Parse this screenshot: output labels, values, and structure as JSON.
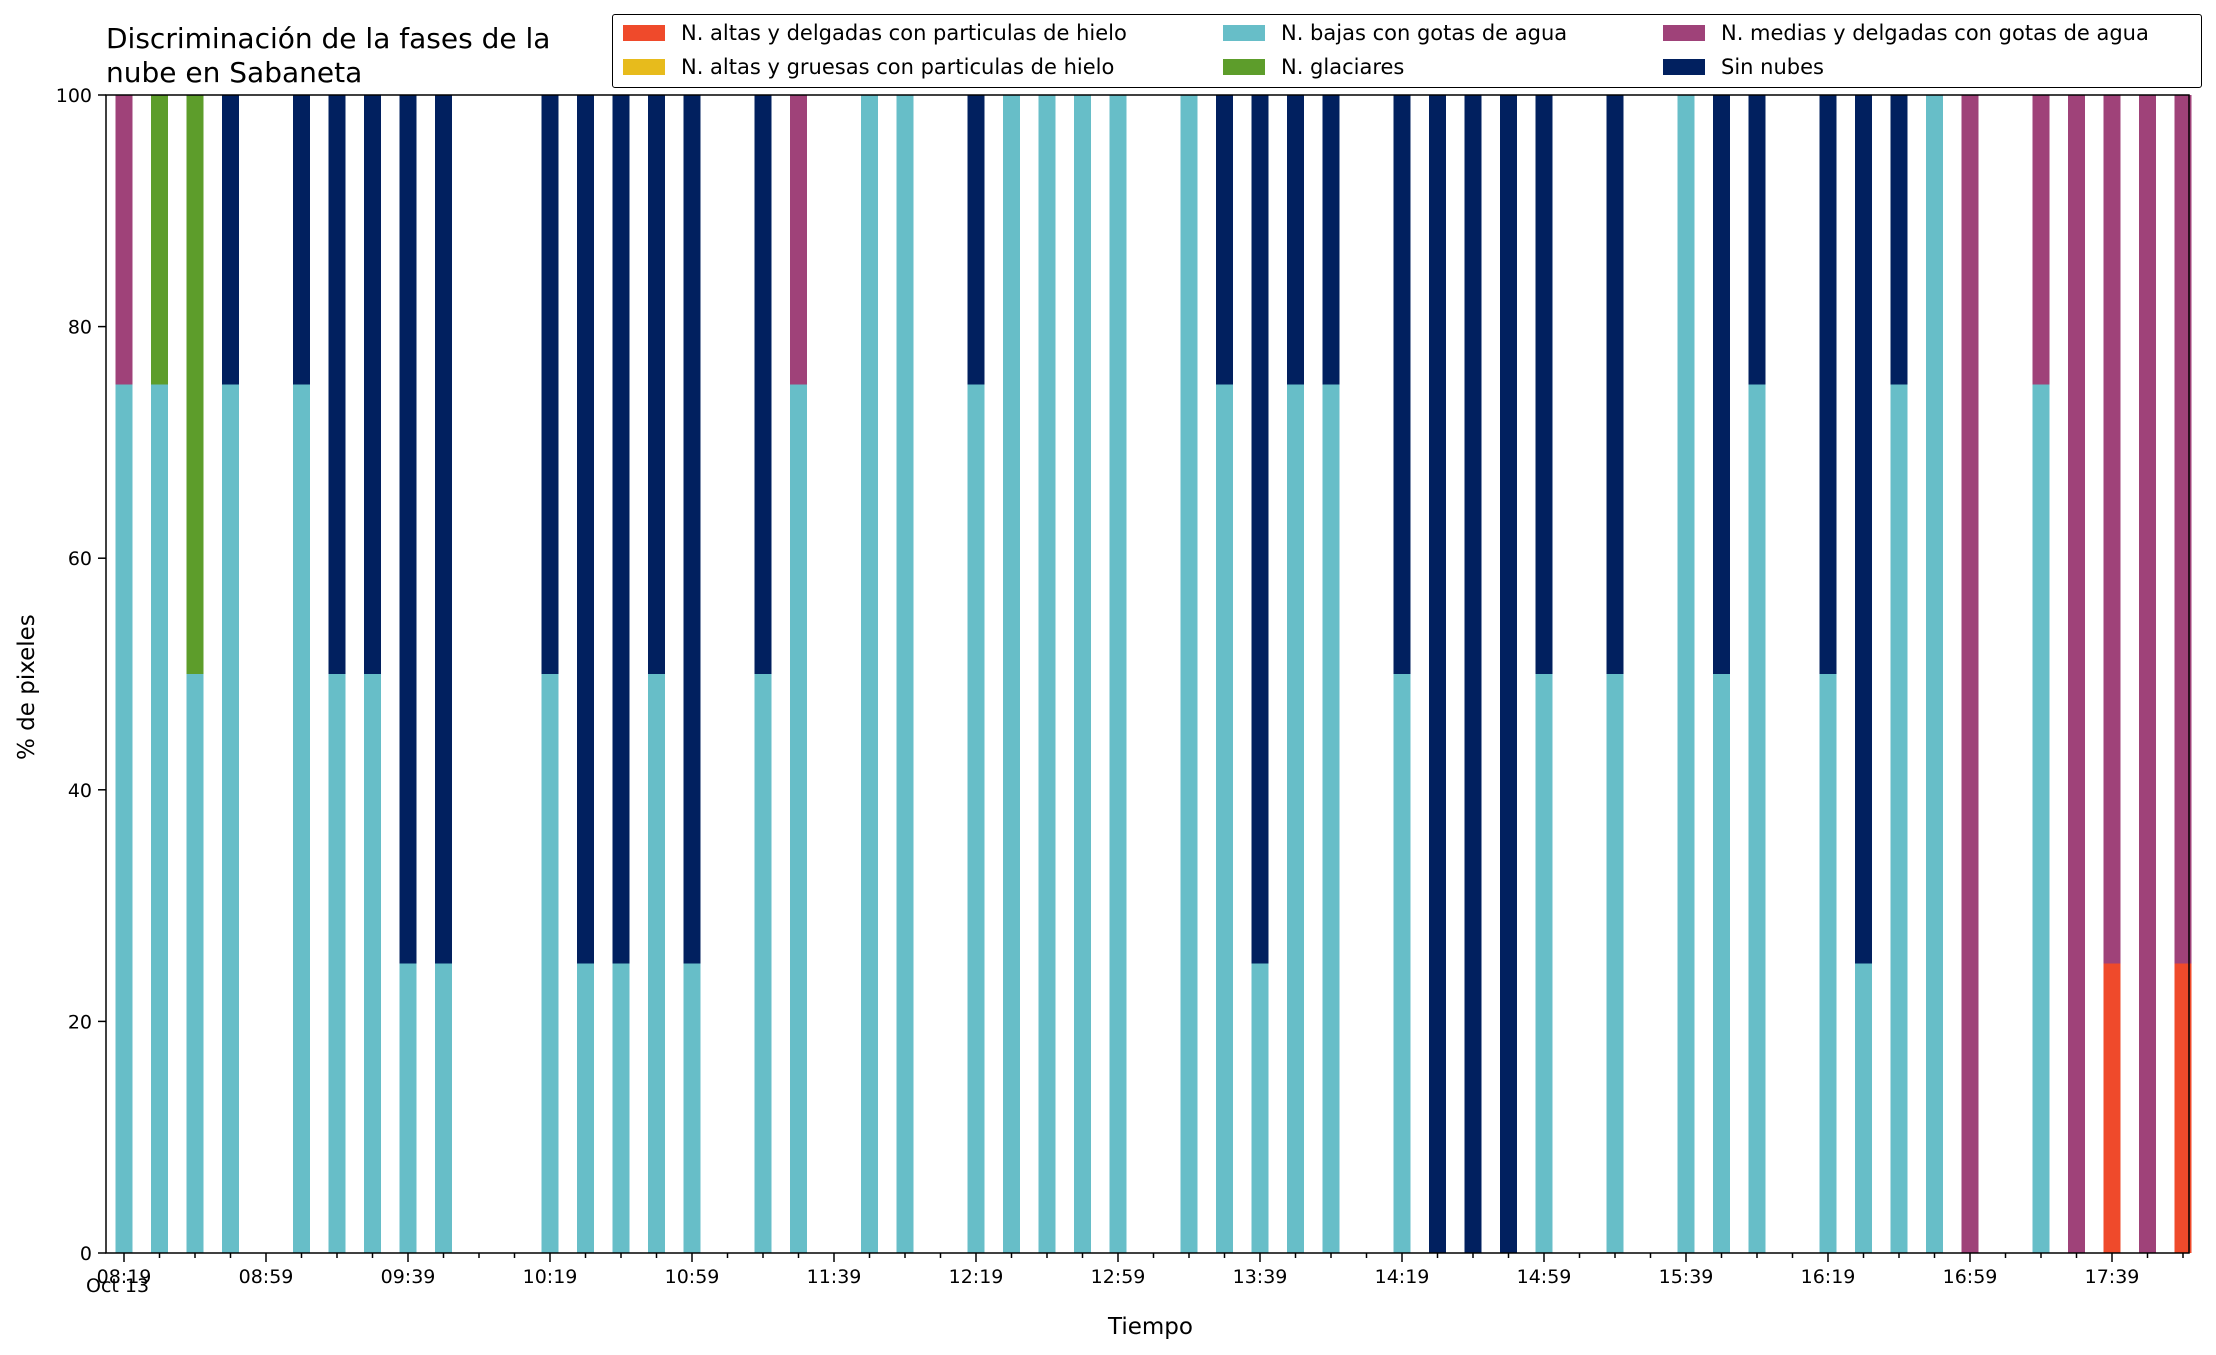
{
  "chart_data": {
    "type": "bar",
    "stacked": true,
    "title": "Discriminación de la fases de la\nnube en Sabaneta",
    "xlabel": "Tiempo",
    "ylabel": "% de pixeles",
    "ylim": [
      0,
      100
    ],
    "yticks": [
      0,
      20,
      40,
      60,
      80,
      100
    ],
    "xtick_labels": [
      "08:19",
      "08:59",
      "09:39",
      "10:19",
      "10:59",
      "11:39",
      "12:19",
      "12:59",
      "13:39",
      "14:19",
      "14:59",
      "15:39",
      "16:19",
      "16:59",
      "17:39"
    ],
    "x_sublabel": "Oct 13",
    "legend_position": "top-right",
    "grid": false,
    "slot_count": 59,
    "categories": [
      "08:19",
      "08:29",
      "08:39",
      "08:49",
      "08:59",
      "09:09",
      "09:19",
      "09:29",
      "09:39",
      "09:49",
      "09:59",
      "10:09",
      "10:19",
      "10:29",
      "10:39",
      "10:49",
      "10:59",
      "11:09",
      "11:19",
      "11:29",
      "11:39",
      "11:49",
      "11:59",
      "12:09",
      "12:19",
      "12:29",
      "12:39",
      "12:49",
      "12:59",
      "13:09",
      "13:19",
      "13:29",
      "13:39",
      "13:49",
      "13:59",
      "14:09",
      "14:19",
      "14:29",
      "14:39",
      "14:49",
      "14:59",
      "15:09",
      "15:19",
      "15:29",
      "15:39",
      "15:49",
      "15:59",
      "16:09",
      "16:19",
      "16:29",
      "16:39",
      "16:49",
      "16:59",
      "17:09",
      "17:19",
      "17:29",
      "17:39",
      "17:49",
      "17:59"
    ],
    "series": [
      {
        "name": "N. altas y delgadas con particulas de hielo",
        "color": "#ef4a2b",
        "values": [
          0,
          0,
          0,
          0,
          null,
          0,
          0,
          0,
          0,
          0,
          0,
          null,
          0,
          0,
          0,
          0,
          0,
          null,
          0,
          0,
          null,
          0,
          0,
          null,
          0,
          0,
          0,
          0,
          0,
          null,
          0,
          0,
          0,
          0,
          0,
          0,
          null,
          0,
          0,
          0,
          0,
          0,
          null,
          0,
          0,
          0,
          0,
          0,
          null,
          0,
          0,
          0,
          0,
          null,
          0,
          0,
          25,
          0,
          25
        ]
      },
      {
        "name": "N. altas y gruesas con particulas de hielo",
        "color": "#e7bb1c",
        "values": [
          0,
          0,
          0,
          0,
          null,
          0,
          0,
          0,
          0,
          0,
          0,
          null,
          0,
          0,
          0,
          0,
          0,
          null,
          0,
          0,
          null,
          0,
          0,
          null,
          0,
          0,
          0,
          0,
          0,
          null,
          0,
          0,
          0,
          0,
          0,
          0,
          null,
          0,
          0,
          0,
          0,
          0,
          null,
          0,
          0,
          0,
          0,
          0,
          null,
          0,
          0,
          0,
          0,
          null,
          0,
          0,
          0,
          0,
          0
        ]
      },
      {
        "name": "N. bajas con gotas de agua",
        "color": "#67bec8",
        "values": [
          75,
          75,
          50,
          75,
          null,
          75,
          50,
          50,
          25,
          25,
          null,
          null,
          50,
          25,
          25,
          50,
          25,
          null,
          50,
          75,
          null,
          100,
          100,
          null,
          75,
          100,
          100,
          100,
          100,
          null,
          100,
          75,
          25,
          75,
          75,
          null,
          50,
          0,
          0,
          0,
          50,
          null,
          50,
          null,
          100,
          50,
          75,
          null,
          50,
          25,
          75,
          100,
          0,
          null,
          75,
          0,
          0,
          0,
          0
        ]
      },
      {
        "name": "N. glaciares",
        "color": "#5d9d2b",
        "values": [
          0,
          25,
          50,
          0,
          null,
          0,
          0,
          0,
          0,
          0,
          null,
          null,
          0,
          0,
          0,
          0,
          0,
          null,
          0,
          0,
          null,
          0,
          0,
          null,
          0,
          0,
          0,
          0,
          0,
          null,
          0,
          0,
          0,
          0,
          0,
          null,
          0,
          0,
          0,
          0,
          0,
          null,
          0,
          null,
          0,
          0,
          0,
          null,
          0,
          0,
          0,
          0,
          0,
          null,
          0,
          0,
          0,
          0,
          0
        ]
      },
      {
        "name": "N. medias y delgadas con gotas de agua",
        "color": "#9f4279",
        "values": [
          25,
          0,
          0,
          0,
          null,
          0,
          0,
          0,
          0,
          0,
          null,
          null,
          0,
          0,
          0,
          0,
          0,
          null,
          0,
          25,
          null,
          0,
          0,
          null,
          0,
          0,
          0,
          0,
          0,
          null,
          0,
          0,
          0,
          0,
          0,
          null,
          0,
          0,
          0,
          0,
          0,
          null,
          0,
          null,
          0,
          0,
          0,
          null,
          0,
          0,
          0,
          0,
          100,
          null,
          25,
          100,
          75,
          100,
          75
        ]
      },
      {
        "name": "Sin nubes",
        "color": "#01205f",
        "values": [
          0,
          0,
          0,
          25,
          null,
          25,
          50,
          50,
          75,
          75,
          null,
          null,
          50,
          75,
          75,
          50,
          75,
          null,
          50,
          0,
          null,
          0,
          0,
          null,
          25,
          0,
          0,
          0,
          0,
          null,
          0,
          25,
          75,
          25,
          25,
          null,
          50,
          100,
          100,
          100,
          50,
          null,
          50,
          null,
          0,
          50,
          25,
          null,
          50,
          75,
          25,
          0,
          0,
          null,
          0,
          0,
          0,
          0,
          0
        ]
      }
    ]
  }
}
